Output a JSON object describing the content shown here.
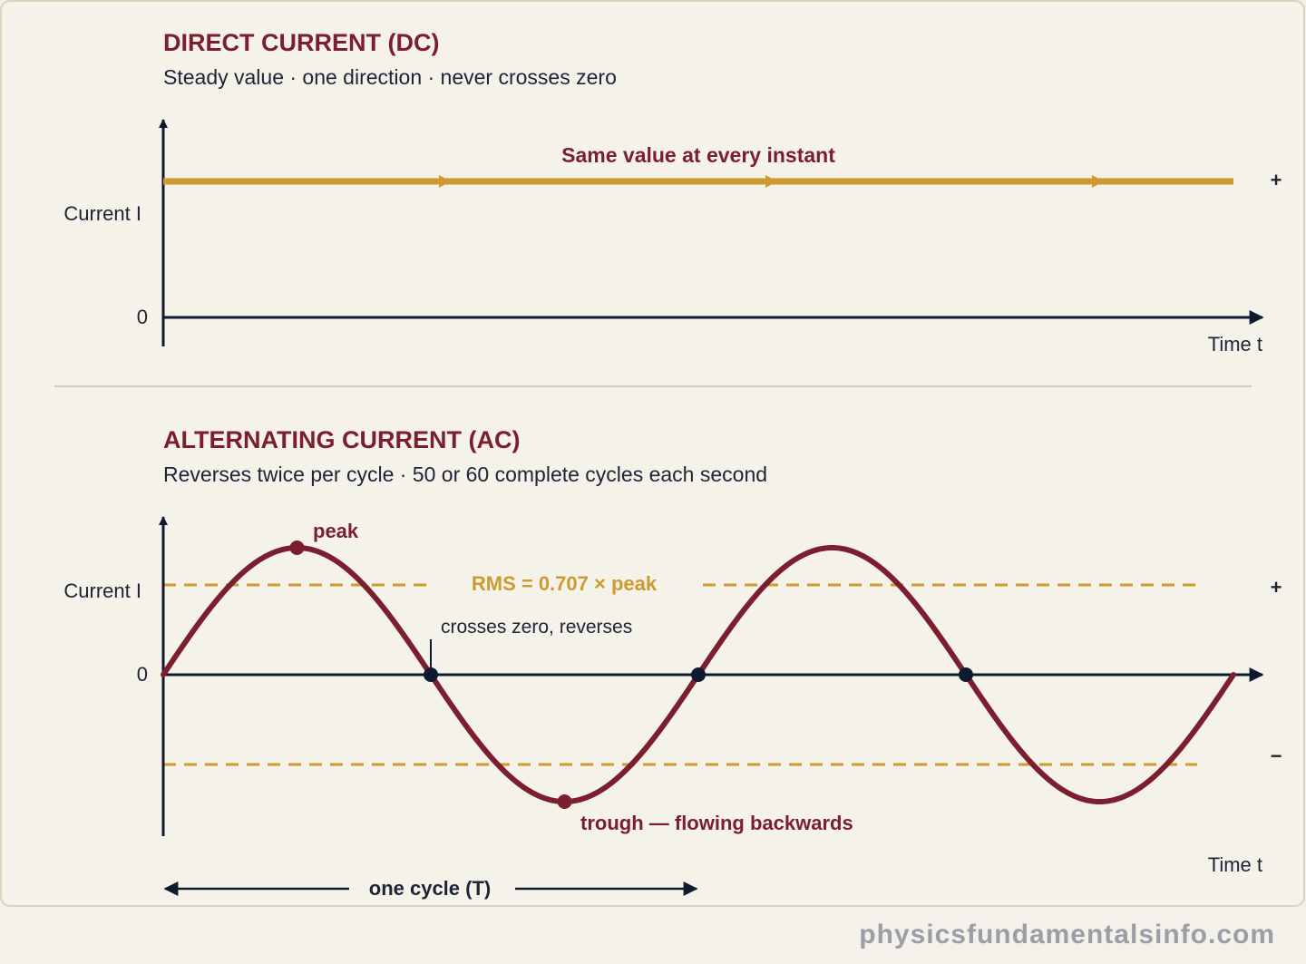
{
  "colors": {
    "background": "#f4f1ea",
    "panel": "#f5f2ea",
    "panel_border": "#ddd3bd",
    "heading": "#7b1e2e",
    "text": "#1d2436",
    "axis": "#101a2e",
    "dc_line": "#cc9a2e",
    "ac_wave": "#7b1e2e",
    "rms_line": "#cc9a2e",
    "marker": "#101a2e",
    "watermark": "#9a9ea6"
  },
  "dc": {
    "title": "DIRECT CURRENT (DC)",
    "subtitle": "Steady value · one direction · never crosses zero",
    "y_label": "Current I",
    "zero_label": "0",
    "x_label": "Time t",
    "plus_label": "+",
    "annotation": "Same value at every instant",
    "level": 1
  },
  "ac": {
    "title": "ALTERNATING CURRENT (AC)",
    "subtitle": "Reverses twice per cycle · 50 or 60 complete cycles each second",
    "y_label": "Current I",
    "zero_label": "0",
    "x_label": "Time t",
    "plus_label": "+",
    "minus_label": "−",
    "peak_label": "peak",
    "trough_label": "trough — flowing backwards",
    "zero_cross_label": "crosses zero, reverses",
    "rms_label": "RMS = 0.707 × peak",
    "rms_factor": 0.707,
    "cycles_shown": 2,
    "cycle_label": "one cycle (T)"
  },
  "watermark": "physicsfundamentalsinfo.com"
}
